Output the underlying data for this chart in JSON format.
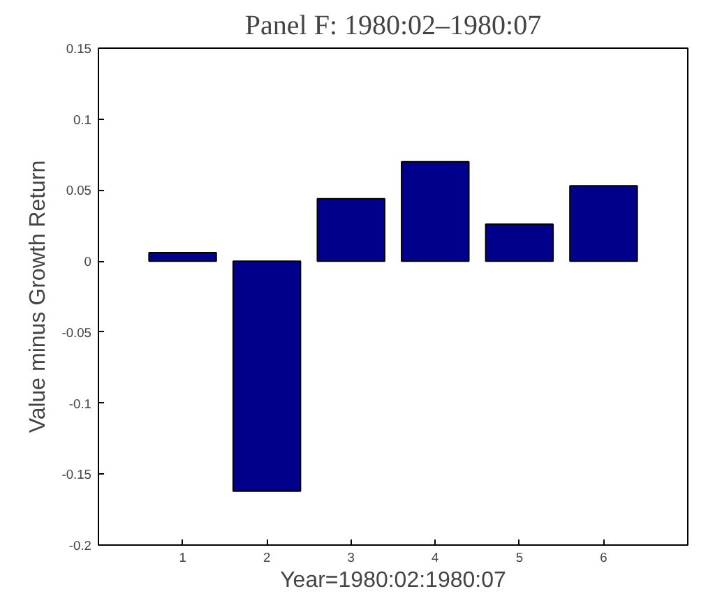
{
  "chart_data": {
    "type": "bar",
    "title": "Panel F: 1980:02–1980:07",
    "xlabel": "Year=1980:02:1980:07",
    "ylabel": "Value minus Growth Return",
    "x": [
      1,
      2,
      3,
      4,
      5,
      6
    ],
    "values": [
      0.006,
      -0.162,
      0.044,
      0.07,
      0.026,
      0.053
    ],
    "color": "#00008b",
    "xlim": [
      0,
      7
    ],
    "xticks": [
      1,
      2,
      3,
      4,
      5,
      6
    ],
    "ylim": [
      -0.2,
      0.15
    ],
    "yticks": [
      -0.2,
      -0.15,
      -0.1,
      -0.05,
      0,
      0.05,
      0.1,
      0.15
    ],
    "grid": false
  }
}
